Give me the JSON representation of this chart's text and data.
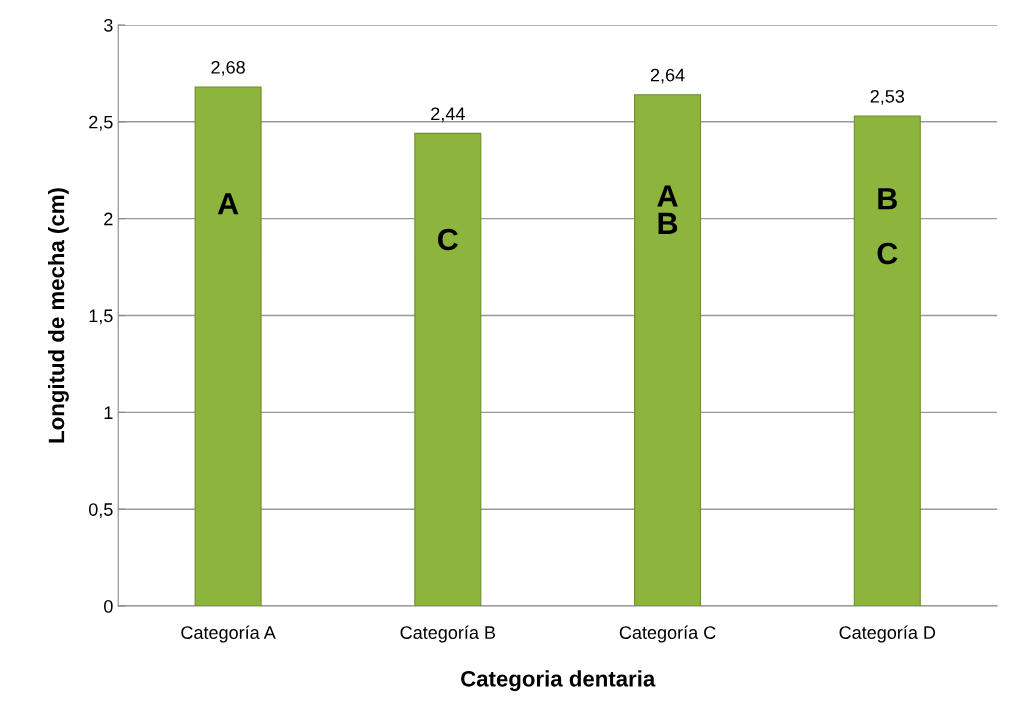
{
  "chart_data": {
    "type": "bar",
    "xlabel": "Categoria dentaria",
    "ylabel": "Longitud de mecha (cm)",
    "categories": [
      "Categoría A",
      "Categoría B",
      "Categoría C",
      "Categoría D"
    ],
    "values": [
      2.68,
      2.44,
      2.64,
      2.53
    ],
    "value_labels": [
      "2,68",
      "2,44",
      "2,64",
      "2,53"
    ],
    "color": "#8db43c",
    "ylim": [
      0,
      3
    ],
    "yticks": [
      0,
      {
        "value": 0.5,
        "label": "0,5"
      },
      1,
      {
        "value": 1.5,
        "label": "1,5"
      },
      2,
      {
        "value": 2.5,
        "label": "2,5"
      },
      3
    ],
    "grid": "y",
    "annotations": [
      "A",
      "C",
      "A\nB",
      "B\n\nC"
    ]
  }
}
